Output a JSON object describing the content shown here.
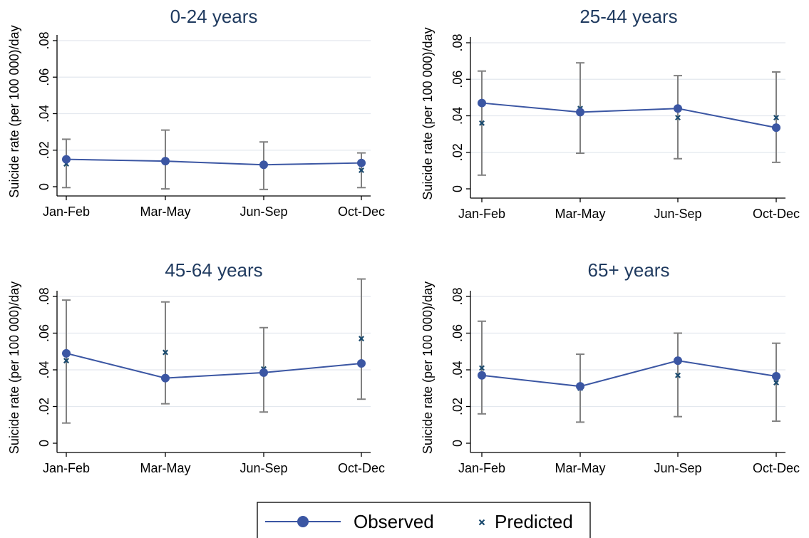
{
  "chart_data": [
    {
      "type": "line",
      "title": "0-24 years",
      "xlabel": "",
      "ylabel": "Suicide rate (per 100 000)/day",
      "categories": [
        "Jan-Feb",
        "Mar-May",
        "Jun-Sep",
        "Oct-Dec"
      ],
      "ylim": [
        0,
        0.08
      ],
      "yticks": [
        0,
        0.02,
        0.04,
        0.06,
        0.08
      ],
      "ytick_labels": [
        "0",
        ".02",
        ".04",
        ".06",
        ".08"
      ],
      "grid": true,
      "series": [
        {
          "name": "Observed",
          "values": [
            0.015,
            0.014,
            0.012,
            0.013
          ],
          "ci_low": [
            -0.0005,
            -0.0012,
            -0.0015,
            -0.0005
          ],
          "ci_high": [
            0.026,
            0.031,
            0.0245,
            0.0185
          ]
        },
        {
          "name": "Predicted",
          "values": [
            0.0125,
            0.0135,
            0.012,
            0.009
          ]
        }
      ]
    },
    {
      "type": "line",
      "title": "25-44 years",
      "xlabel": "",
      "ylabel": "Suicide rate (per 100 000)/day",
      "categories": [
        "Jan-Feb",
        "Mar-May",
        "Jun-Sep",
        "Oct-Dec"
      ],
      "ylim": [
        0,
        0.08
      ],
      "yticks": [
        0,
        0.02,
        0.04,
        0.06,
        0.08
      ],
      "ytick_labels": [
        "0",
        ".02",
        ".04",
        ".06",
        ".08"
      ],
      "grid": true,
      "series": [
        {
          "name": "Observed",
          "values": [
            0.047,
            0.042,
            0.044,
            0.0335
          ],
          "ci_low": [
            0.0075,
            0.0195,
            0.0165,
            0.0145
          ],
          "ci_high": [
            0.0645,
            0.069,
            0.062,
            0.064
          ]
        },
        {
          "name": "Predicted",
          "values": [
            0.036,
            0.044,
            0.039,
            0.039
          ]
        }
      ]
    },
    {
      "type": "line",
      "title": "45-64 years",
      "xlabel": "",
      "ylabel": "Suicide rate (per 100 000)/day",
      "categories": [
        "Jan-Feb",
        "Mar-May",
        "Jun-Sep",
        "Oct-Dec"
      ],
      "ylim": [
        0,
        0.08
      ],
      "yticks": [
        0,
        0.02,
        0.04,
        0.06,
        0.08
      ],
      "ytick_labels": [
        "0",
        ".02",
        ".04",
        ".06",
        ".08"
      ],
      "grid": true,
      "series": [
        {
          "name": "Observed",
          "values": [
            0.049,
            0.0355,
            0.0385,
            0.0435
          ],
          "ci_low": [
            0.011,
            0.0215,
            0.017,
            0.024
          ],
          "ci_high": [
            0.078,
            0.077,
            0.063,
            0.0895
          ]
        },
        {
          "name": "Predicted",
          "values": [
            0.045,
            0.0495,
            0.0405,
            0.057
          ]
        }
      ]
    },
    {
      "type": "line",
      "title": "65+ years",
      "xlabel": "",
      "ylabel": "Suicide rate (per 100 000)/day",
      "categories": [
        "Jan-Feb",
        "Mar-May",
        "Jun-Sep",
        "Oct-Dec"
      ],
      "ylim": [
        0,
        0.08
      ],
      "yticks": [
        0,
        0.02,
        0.04,
        0.06,
        0.08
      ],
      "ytick_labels": [
        "0",
        ".02",
        ".04",
        ".06",
        ".08"
      ],
      "grid": true,
      "series": [
        {
          "name": "Observed",
          "values": [
            0.037,
            0.031,
            0.045,
            0.0365
          ],
          "ci_low": [
            0.016,
            0.0115,
            0.0145,
            0.012
          ],
          "ci_high": [
            0.0665,
            0.0485,
            0.06,
            0.0545
          ]
        },
        {
          "name": "Predicted",
          "values": [
            0.041,
            0.03,
            0.037,
            0.033
          ]
        }
      ]
    }
  ],
  "legend": {
    "position": "bottom-center",
    "items": [
      {
        "label": "Observed",
        "marker": "circle-line"
      },
      {
        "label": "Predicted",
        "marker": "x"
      }
    ]
  },
  "colors": {
    "observed": "#3b56a3",
    "predicted": "#1a4a6e",
    "ci": "#808080",
    "grid": "#e3e8ee",
    "title": "#1f3a5f"
  }
}
